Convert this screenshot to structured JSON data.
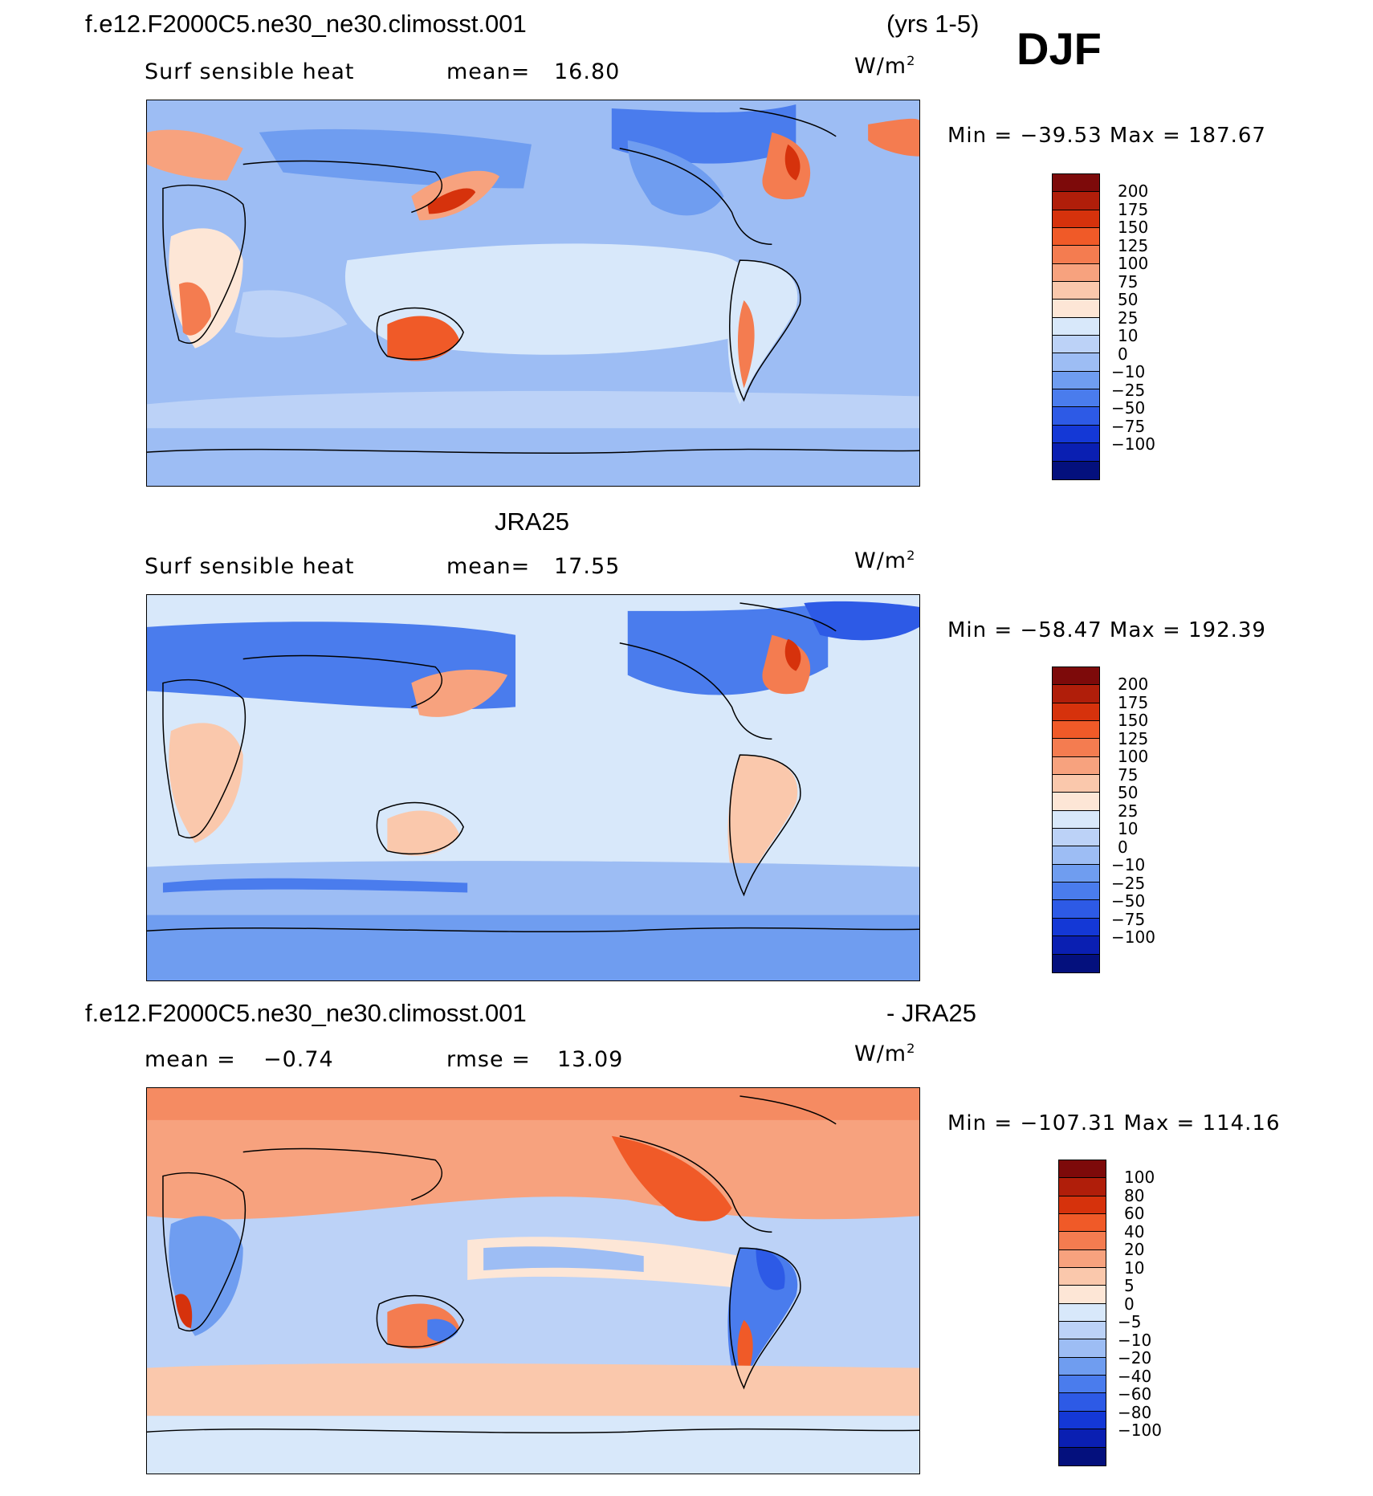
{
  "header": {
    "case_title": "f.e12.F2000C5.ne30_ne30.climosst.001",
    "years": "(yrs 1-5)",
    "season": "DJF"
  },
  "panels": [
    {
      "id": "model",
      "title": "",
      "variable": "Surf sensible heat",
      "stat_label": "mean=",
      "stat_value": "16.80",
      "units_base": "W/m",
      "units_exp": "2",
      "minmax": "Min = −39.53 Max = 187.67",
      "colorbar": {
        "colors": [
          "#7d0a0a",
          "#b01e0a",
          "#d6320c",
          "#f05a28",
          "#f47c50",
          "#f7a27e",
          "#fac8ac",
          "#fde6d6",
          "#d8e8fa",
          "#bcd2f7",
          "#9dbdf4",
          "#6f9df0",
          "#4a7ced",
          "#2d5ae6",
          "#1438d6",
          "#0a1fb2",
          "#04107d"
        ],
        "labels": [
          "200",
          "175",
          "150",
          "125",
          "100",
          "75",
          "50",
          "25",
          "10",
          "0",
          "−10",
          "−25",
          "−50",
          "−75",
          "−100"
        ]
      }
    },
    {
      "id": "obs",
      "title": "JRA25",
      "variable": "Surf sensible heat",
      "stat_label": "mean=",
      "stat_value": "17.55",
      "units_base": "W/m",
      "units_exp": "2",
      "minmax": "Min = −58.47 Max = 192.39",
      "colorbar": {
        "colors": [
          "#7d0a0a",
          "#b01e0a",
          "#d6320c",
          "#f05a28",
          "#f47c50",
          "#f7a27e",
          "#fac8ac",
          "#fde6d6",
          "#d8e8fa",
          "#bcd2f7",
          "#9dbdf4",
          "#6f9df0",
          "#4a7ced",
          "#2d5ae6",
          "#1438d6",
          "#0a1fb2",
          "#04107d"
        ],
        "labels": [
          "200",
          "175",
          "150",
          "125",
          "100",
          "75",
          "50",
          "25",
          "10",
          "0",
          "−10",
          "−25",
          "−50",
          "−75",
          "−100"
        ]
      }
    },
    {
      "id": "diff",
      "title_left": "f.e12.F2000C5.ne30_ne30.climosst.001",
      "title_right": "- JRA25",
      "stat_label": "mean =",
      "stat_value": "−0.74",
      "rmse_label": "rmse =",
      "rmse_value": "13.09",
      "units_base": "W/m",
      "units_exp": "2",
      "minmax": "Min = −107.31 Max = 114.16",
      "colorbar": {
        "colors": [
          "#7d0a0a",
          "#b01e0a",
          "#d6320c",
          "#f05a28",
          "#f47c50",
          "#f7a27e",
          "#fac8ac",
          "#fde6d6",
          "#d8e8fa",
          "#bcd2f7",
          "#9dbdf4",
          "#6f9df0",
          "#4a7ced",
          "#2d5ae6",
          "#1438d6",
          "#0a1fb2",
          "#04107d"
        ],
        "labels": [
          "100",
          "80",
          "60",
          "40",
          "20",
          "10",
          "5",
          "0",
          "−5",
          "−10",
          "−20",
          "−40",
          "−60",
          "−80",
          "−100"
        ]
      }
    }
  ]
}
